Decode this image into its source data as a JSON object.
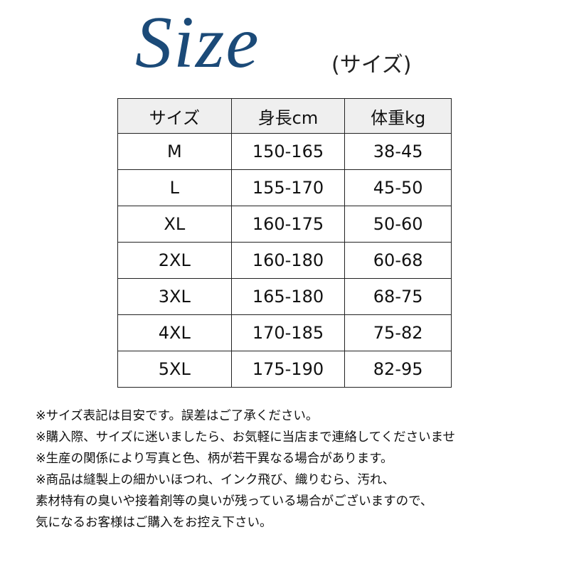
{
  "header": {
    "title": "Size",
    "subtitle": "(サイズ)"
  },
  "table": {
    "columns": [
      "サイズ",
      "身長cm",
      "体重kg"
    ],
    "rows": [
      [
        "M",
        "150-165",
        "38-45"
      ],
      [
        "L",
        "155-170",
        "45-50"
      ],
      [
        "XL",
        "160-175",
        "50-60"
      ],
      [
        "2XL",
        "160-180",
        "60-68"
      ],
      [
        "3XL",
        "165-180",
        "68-75"
      ],
      [
        "4XL",
        "170-185",
        "75-82"
      ],
      [
        "5XL",
        "175-190",
        "82-95"
      ]
    ]
  },
  "notes": [
    "※サイズ表記は目安です。誤差はご了承ください。",
    "※購入際、サイズに迷いましたら、お気軽に当店まで連絡してくださいませ",
    "※生産の関係により写真と色、柄が若干異なる場合があります。",
    "※商品は縫製上の細かいほつれ、インク飛び、織りむら、汚れ、",
    "素材特有の臭いや接着剤等の臭いが残っている場合がございますので、",
    "気になるお客様はご購入をお控え下さい。"
  ]
}
